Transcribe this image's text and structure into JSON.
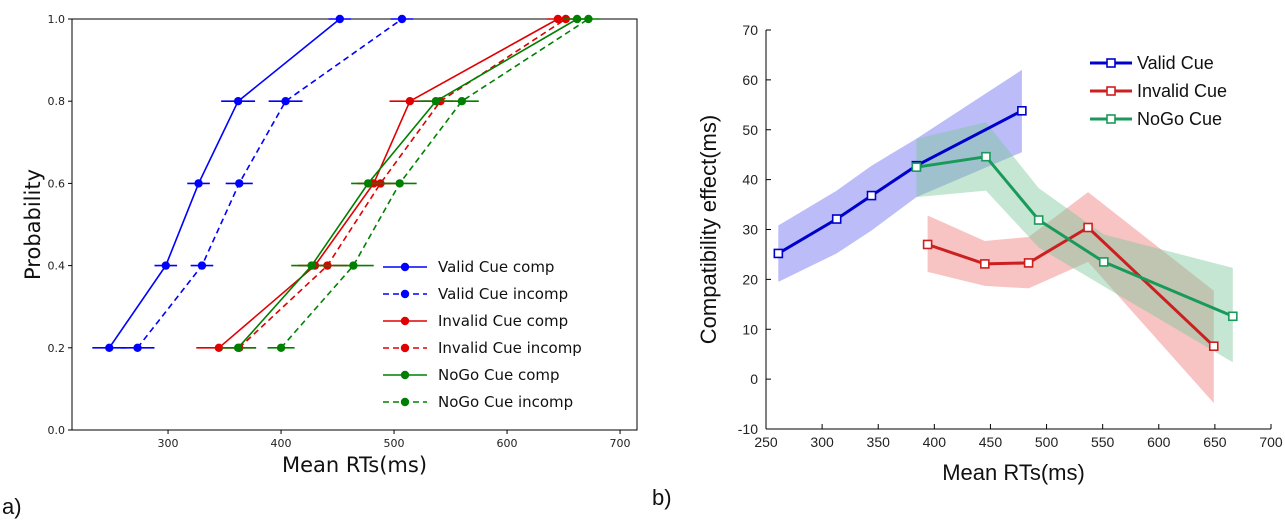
{
  "panel_labels": [
    "a)",
    "b)"
  ],
  "chart_data": [
    {
      "type": "line",
      "xlabel": "Mean RTs(ms)",
      "ylabel": "Probability",
      "xlim": [
        215,
        715
      ],
      "ylim": [
        0.0,
        1.0
      ],
      "xticks": [
        300,
        400,
        500,
        600,
        700
      ],
      "yticks": [
        0.0,
        0.2,
        0.4,
        0.6,
        0.8,
        1.0
      ],
      "grid": false,
      "legend_position": "bottom-right",
      "series": [
        {
          "name": "Valid Cue comp",
          "color": "#0000ff",
          "dash": "solid",
          "x": [
            248,
            298,
            327,
            362,
            452
          ],
          "y": [
            0.2,
            0.4,
            0.6,
            0.8,
            1.0
          ],
          "xerr": [
            15,
            10,
            10,
            15,
            10
          ]
        },
        {
          "name": "Valid Cue incomp",
          "color": "#0000ff",
          "dash": "dashed",
          "x": [
            273,
            330,
            363,
            404,
            507
          ],
          "y": [
            0.2,
            0.4,
            0.6,
            0.8,
            1.0
          ],
          "xerr": [
            15,
            10,
            12,
            15,
            10
          ]
        },
        {
          "name": "Invalid Cue comp",
          "color": "#e00000",
          "dash": "solid",
          "x": [
            345,
            430,
            482,
            514,
            645
          ],
          "y": [
            0.2,
            0.4,
            0.6,
            0.8,
            1.0
          ],
          "xerr": [
            20,
            15,
            15,
            18,
            10
          ]
        },
        {
          "name": "Invalid Cue incomp",
          "color": "#e00000",
          "dash": "dashed",
          "x": [
            363,
            441,
            488,
            541,
            652
          ],
          "y": [
            0.2,
            0.4,
            0.6,
            0.8,
            1.0
          ],
          "xerr": [
            15,
            18,
            15,
            15,
            10
          ]
        },
        {
          "name": "NoGo Cue comp",
          "color": "#008000",
          "dash": "solid",
          "x": [
            362,
            427,
            477,
            537,
            662
          ],
          "y": [
            0.2,
            0.4,
            0.6,
            0.8,
            1.0
          ],
          "xerr": [
            15,
            18,
            15,
            15,
            12
          ]
        },
        {
          "name": "NoGo Cue incomp",
          "color": "#008000",
          "dash": "dashed",
          "x": [
            400,
            464,
            505,
            560,
            672
          ],
          "y": [
            0.2,
            0.4,
            0.6,
            0.8,
            1.0
          ],
          "xerr": [
            12,
            18,
            15,
            15,
            10
          ]
        }
      ]
    },
    {
      "type": "line",
      "xlabel": "Mean RTs(ms)",
      "ylabel": "Compatibility effect(ms)",
      "xlim": [
        250,
        700
      ],
      "ylim": [
        -10,
        70
      ],
      "xticks": [
        250,
        300,
        350,
        400,
        450,
        500,
        550,
        600,
        650,
        700
      ],
      "yticks": [
        -10,
        0,
        10,
        20,
        30,
        40,
        50,
        60,
        70
      ],
      "grid": false,
      "legend_position": "top-right",
      "series": [
        {
          "name": "Valid Cue",
          "color": "#0000cc",
          "band_color": "#6a6af0",
          "x": [
            261,
            313,
            344,
            384,
            478
          ],
          "y": [
            25.2,
            32.1,
            36.8,
            42.8,
            53.8
          ],
          "lower": [
            19.5,
            25.2,
            29.8,
            36.5,
            45.5
          ],
          "upper": [
            30.8,
            37.8,
            42.8,
            48.2,
            62.0
          ]
        },
        {
          "name": "Invalid Cue",
          "color": "#cc1f1f",
          "band_color": "#f07a7a",
          "x": [
            394,
            445,
            484,
            537,
            649
          ],
          "y": [
            27.0,
            23.1,
            23.3,
            30.4,
            6.6
          ],
          "lower": [
            21.5,
            18.7,
            18.2,
            23.5,
            -4.8
          ],
          "upper": [
            32.8,
            27.7,
            28.5,
            37.5,
            17.7
          ]
        },
        {
          "name": "NoGo Cue",
          "color": "#1a9a5a",
          "band_color": "#7cc89c",
          "x": [
            384,
            446,
            493,
            551,
            666
          ],
          "y": [
            42.5,
            44.6,
            31.9,
            23.5,
            12.6
          ],
          "lower": [
            36.5,
            37.8,
            26.4,
            18.6,
            3.4
          ],
          "upper": [
            48.2,
            51.5,
            38.3,
            29.0,
            22.3
          ]
        }
      ]
    }
  ]
}
